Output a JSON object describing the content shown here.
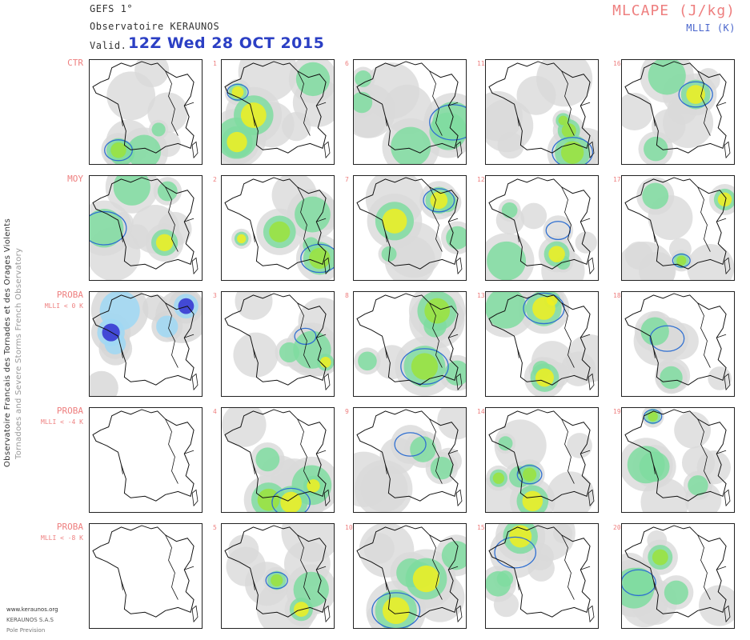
{
  "header": {
    "model": "GEFS 1°",
    "organization": "Observatoire KERAUNOS",
    "valid_label": "Valid.",
    "valid_datetime": "12Z Wed 28 OCT 2015",
    "parameter": "MLCAPE (J/kg)",
    "contour_parameter": "MLLI (K)"
  },
  "side_title": {
    "main": "Observatoire Francais des Tornades et des Orages Violents",
    "english": "Tornadoes and Severe Storms French Observatory"
  },
  "row_labels": [
    {
      "line1": "CTR",
      "line2": ""
    },
    {
      "line1": "MOY",
      "line2": ""
    },
    {
      "line1": "PROBA",
      "line2": "MLLI < 0 K"
    },
    {
      "line1": "PROBA",
      "line2": "MLLI < -4 K"
    },
    {
      "line1": "PROBA",
      "line2": "MLLI < -8 K"
    }
  ],
  "member_numbers": [
    [
      "1",
      "6",
      "11",
      "16"
    ],
    [
      "2",
      "7",
      "12",
      "17"
    ],
    [
      "3",
      "8",
      "13",
      "18"
    ],
    [
      "4",
      "9",
      "14",
      "19"
    ],
    [
      "5",
      "10",
      "15",
      "20"
    ]
  ],
  "footer": {
    "website": "www.keraunos.org",
    "company": "KERAUNOS S.A.S",
    "dept": "Pole Prevision"
  },
  "colors": {
    "cape_low": "#d9d9d9",
    "cape_mid": "#7fdca0",
    "cape_high": "#9be33c",
    "cape_max": "#f0f020",
    "li_contour": "#2f6fd1",
    "proba_light": "#9fd8f5",
    "proba_strong": "#3030d0",
    "label_red": "#ee7f7f",
    "title_blue": "#2b3fc4"
  }
}
